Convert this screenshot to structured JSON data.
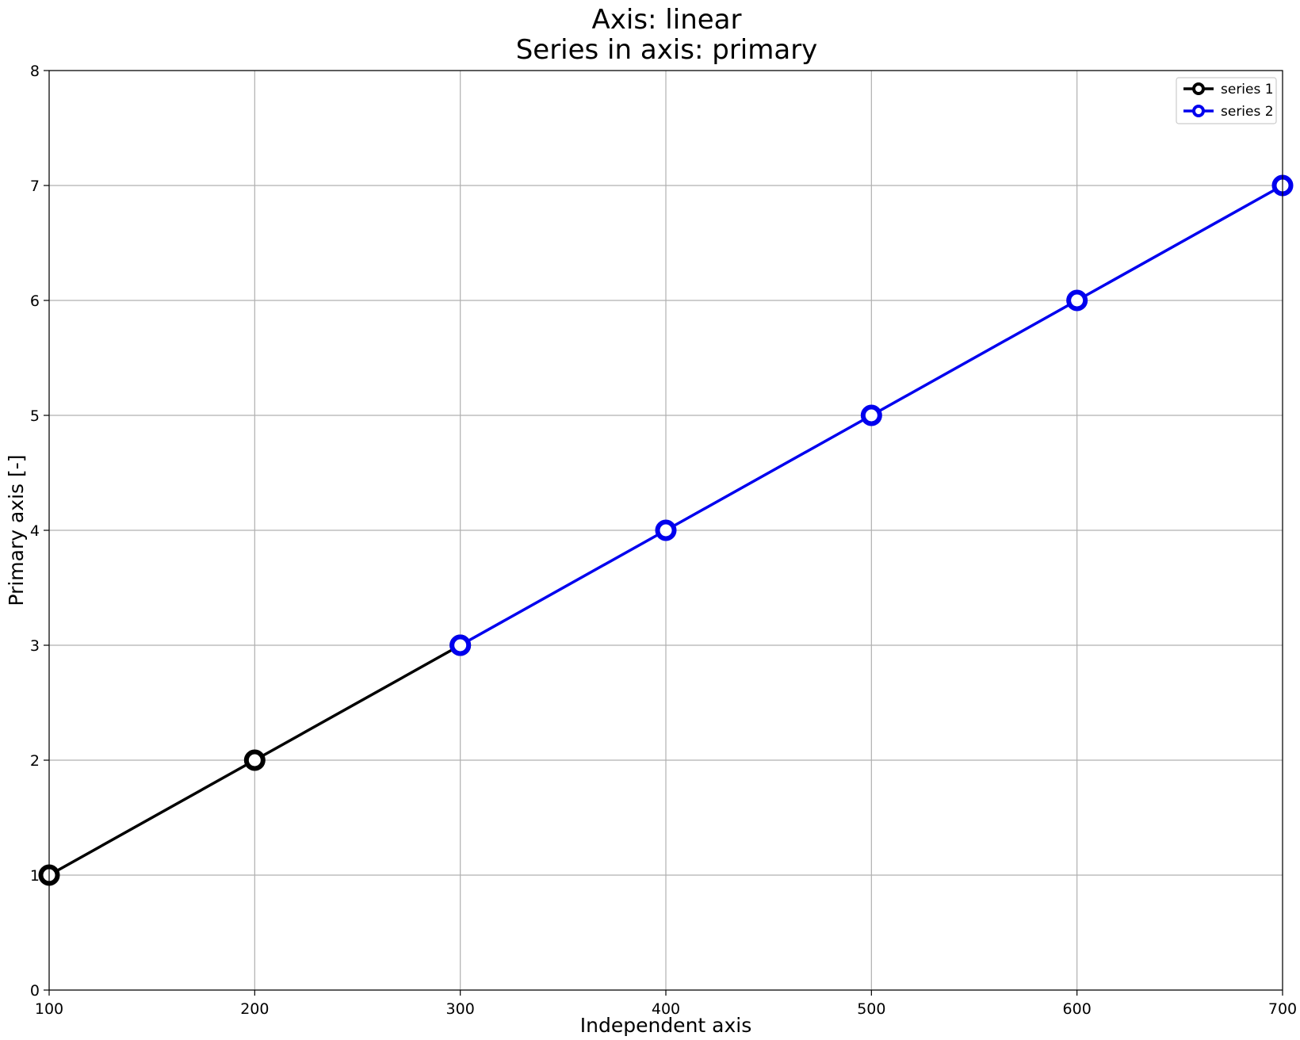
{
  "chart_data": {
    "type": "line",
    "title_line1": "Axis: linear",
    "title_line2": "Series in axis: primary",
    "xlabel": "Independent axis",
    "ylabel": "Primary axis [-]",
    "xlim": [
      100,
      700
    ],
    "ylim": [
      0,
      8
    ],
    "xticks": [
      100,
      200,
      300,
      400,
      500,
      600,
      700
    ],
    "yticks": [
      0,
      1,
      2,
      3,
      4,
      5,
      6,
      7,
      8
    ],
    "grid": true,
    "legend_position": "top-right",
    "series": [
      {
        "name": "series 1",
        "color": "#000000",
        "x": [
          100,
          200,
          300
        ],
        "y": [
          1,
          2,
          3
        ]
      },
      {
        "name": "series 2",
        "color": "#0000ee",
        "x": [
          300,
          400,
          500,
          600,
          700
        ],
        "y": [
          3,
          4,
          5,
          6,
          7
        ]
      }
    ]
  }
}
